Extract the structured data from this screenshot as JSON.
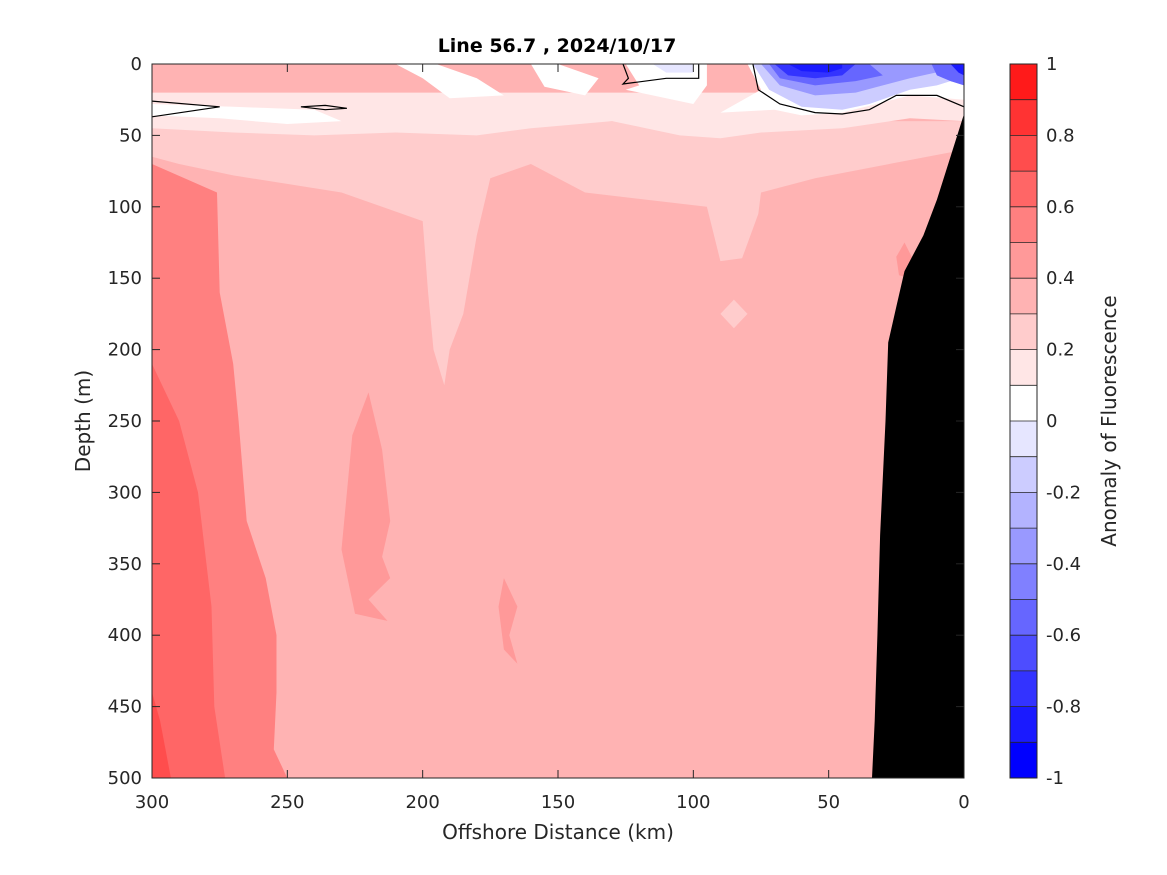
{
  "chart_data": {
    "type": "heatmap",
    "title": "Line 56.7 , 2024/10/17",
    "xlabel": "Offshore Distance (km)",
    "ylabel": "Depth (m)",
    "xlim": [
      300,
      0
    ],
    "ylim": [
      500,
      0
    ],
    "x_reversed": true,
    "y_reversed": true,
    "x_ticks": [
      "300",
      "250",
      "200",
      "150",
      "100",
      "50",
      "0"
    ],
    "y_ticks": [
      "0",
      "50",
      "100",
      "150",
      "200",
      "250",
      "300",
      "350",
      "400",
      "450",
      "500"
    ],
    "grid": false,
    "colorbar": {
      "label": "Anomaly of Fluorescence",
      "range": [
        -1,
        1
      ],
      "ticks": [
        "1",
        "0.8",
        "0.6",
        "0.4",
        "0.2",
        "0",
        "-0.2",
        "-0.4",
        "-0.6",
        "-0.8",
        "-1"
      ],
      "levels": [
        -1,
        -0.9,
        -0.8,
        -0.7,
        -0.6,
        -0.5,
        -0.4,
        -0.3,
        -0.2,
        -0.1,
        0,
        0.1,
        0.2,
        0.3,
        0.4,
        0.5,
        0.6,
        0.7,
        0.8,
        0.9,
        1
      ],
      "colors": [
        "#0000ff",
        "#1a1aff",
        "#3333ff",
        "#4d4dff",
        "#6666ff",
        "#8080ff",
        "#9999ff",
        "#b3b3ff",
        "#ccccff",
        "#e6e6ff",
        "#ffffff",
        "#ffffff",
        "#ffe6e6",
        "#ffcccc",
        "#ffb3b3",
        "#ff9999",
        "#ff8080",
        "#ff6666",
        "#ff4d4d",
        "#ff3333",
        "#ff1a1a",
        "#ff0000"
      ]
    },
    "bathymetry": {
      "color": "#000000",
      "boundary": [
        [
          0,
          35
        ],
        [
          5,
          65
        ],
        [
          10,
          95
        ],
        [
          15,
          120
        ],
        [
          22,
          145
        ],
        [
          25,
          170
        ],
        [
          28,
          195
        ],
        [
          29,
          250
        ],
        [
          31,
          330
        ],
        [
          32,
          400
        ],
        [
          33,
          460
        ],
        [
          34,
          500
        ]
      ]
    },
    "regions": [
      {
        "value": 0.35,
        "polygon": [
          [
            300,
            0
          ],
          [
            0,
            0
          ],
          [
            0,
            500
          ],
          [
            300,
            500
          ]
        ]
      },
      {
        "value": 0.55,
        "polygon": [
          [
            300,
            70
          ],
          [
            276,
            90
          ],
          [
            275,
            160
          ],
          [
            270,
            210
          ],
          [
            268,
            250
          ],
          [
            265,
            320
          ],
          [
            258,
            360
          ],
          [
            254,
            400
          ],
          [
            254,
            440
          ],
          [
            255,
            480
          ],
          [
            250,
            500
          ],
          [
            300,
            500
          ]
        ]
      },
      {
        "value": 0.65,
        "polygon": [
          [
            300,
            210
          ],
          [
            290,
            250
          ],
          [
            283,
            300
          ],
          [
            278,
            380
          ],
          [
            277,
            450
          ],
          [
            273,
            500
          ],
          [
            300,
            500
          ]
        ]
      },
      {
        "value": 0.75,
        "polygon": [
          [
            300,
            440
          ],
          [
            297,
            460
          ],
          [
            295,
            480
          ],
          [
            293,
            500
          ],
          [
            300,
            500
          ]
        ]
      },
      {
        "value": 0.45,
        "polygon": [
          [
            220,
            230
          ],
          [
            215,
            270
          ],
          [
            212,
            320
          ],
          [
            215,
            345
          ],
          [
            212,
            360
          ],
          [
            220,
            375
          ],
          [
            213,
            390
          ],
          [
            225,
            385
          ],
          [
            230,
            340
          ],
          [
            228,
            300
          ],
          [
            226,
            260
          ]
        ]
      },
      {
        "value": 0.45,
        "polygon": [
          [
            170,
            360
          ],
          [
            165,
            380
          ],
          [
            168,
            400
          ],
          [
            165,
            420
          ],
          [
            170,
            410
          ],
          [
            172,
            380
          ]
        ]
      },
      {
        "value": 0.45,
        "polygon": [
          [
            22,
            125
          ],
          [
            18,
            140
          ],
          [
            20,
            150
          ],
          [
            24,
            148
          ],
          [
            25,
            135
          ]
        ]
      },
      {
        "value": 0.25,
        "polygon": [
          [
            300,
            40
          ],
          [
            0,
            40
          ],
          [
            0,
            60
          ],
          [
            55,
            80
          ],
          [
            75,
            90
          ],
          [
            76,
            105
          ],
          [
            82,
            136
          ],
          [
            90,
            138
          ],
          [
            95,
            100
          ],
          [
            140,
            90
          ],
          [
            160,
            70
          ],
          [
            175,
            80
          ],
          [
            180,
            120
          ],
          [
            185,
            175
          ],
          [
            190,
            200
          ],
          [
            192,
            225
          ],
          [
            196,
            200
          ],
          [
            198,
            160
          ],
          [
            200,
            110
          ],
          [
            230,
            90
          ],
          [
            270,
            78
          ],
          [
            290,
            70
          ],
          [
            300,
            65
          ]
        ]
      },
      {
        "value": 0.25,
        "polygon": [
          [
            85,
            165
          ],
          [
            80,
            175
          ],
          [
            85,
            185
          ],
          [
            90,
            175
          ]
        ]
      },
      {
        "value": 0.15,
        "polygon": [
          [
            300,
            20
          ],
          [
            0,
            20
          ],
          [
            0,
            40
          ],
          [
            20,
            38
          ],
          [
            45,
            45
          ],
          [
            75,
            48
          ],
          [
            90,
            52
          ],
          [
            105,
            50
          ],
          [
            130,
            40
          ],
          [
            160,
            45
          ],
          [
            180,
            50
          ],
          [
            210,
            48
          ],
          [
            240,
            50
          ],
          [
            270,
            48
          ],
          [
            300,
            45
          ]
        ]
      },
      {
        "value": 0.05,
        "polygon": [
          [
            300,
            28
          ],
          [
            270,
            30
          ],
          [
            240,
            32
          ],
          [
            230,
            40
          ],
          [
            250,
            42
          ],
          [
            275,
            38
          ],
          [
            300,
            36
          ]
        ]
      },
      {
        "value": 0.05,
        "polygon": [
          [
            195,
            0
          ],
          [
            180,
            10
          ],
          [
            170,
            22
          ],
          [
            190,
            24
          ],
          [
            200,
            10
          ],
          [
            210,
            0
          ]
        ]
      },
      {
        "value": 0.05,
        "polygon": [
          [
            150,
            0
          ],
          [
            135,
            10
          ],
          [
            140,
            22
          ],
          [
            155,
            16
          ],
          [
            160,
            0
          ]
        ]
      },
      {
        "value": 0.05,
        "polygon": [
          [
            125,
            0
          ],
          [
            120,
            15
          ],
          [
            125,
            18
          ],
          [
            100,
            28
          ],
          [
            95,
            15
          ],
          [
            95,
            0
          ]
        ]
      },
      {
        "value": 0.05,
        "polygon": [
          [
            80,
            0
          ],
          [
            75,
            18
          ],
          [
            90,
            34
          ],
          [
            70,
            32
          ],
          [
            60,
            36
          ],
          [
            45,
            34
          ],
          [
            20,
            22
          ],
          [
            0,
            25
          ],
          [
            0,
            0
          ]
        ]
      },
      {
        "value": -0.05,
        "polygon": [
          [
            115,
            0
          ],
          [
            110,
            6
          ],
          [
            100,
            6
          ],
          [
            100,
            0
          ]
        ]
      },
      {
        "value": -0.15,
        "polygon": [
          [
            78,
            0
          ],
          [
            72,
            18
          ],
          [
            60,
            30
          ],
          [
            45,
            32
          ],
          [
            35,
            28
          ],
          [
            20,
            18
          ],
          [
            10,
            15
          ],
          [
            5,
            12
          ],
          [
            0,
            0
          ]
        ]
      },
      {
        "value": -0.35,
        "polygon": [
          [
            75,
            0
          ],
          [
            68,
            15
          ],
          [
            55,
            22
          ],
          [
            40,
            20
          ],
          [
            30,
            15
          ],
          [
            20,
            10
          ],
          [
            8,
            5
          ],
          [
            0,
            0
          ]
        ]
      },
      {
        "value": -0.55,
        "polygon": [
          [
            72,
            0
          ],
          [
            68,
            10
          ],
          [
            55,
            15
          ],
          [
            40,
            12
          ],
          [
            30,
            8
          ],
          [
            35,
            0
          ]
        ]
      },
      {
        "value": -0.75,
        "polygon": [
          [
            70,
            0
          ],
          [
            65,
            8
          ],
          [
            55,
            10
          ],
          [
            45,
            8
          ],
          [
            40,
            0
          ]
        ]
      },
      {
        "value": -0.85,
        "polygon": [
          [
            65,
            0
          ],
          [
            60,
            5
          ],
          [
            50,
            6
          ],
          [
            45,
            3
          ],
          [
            45,
            0
          ]
        ]
      },
      {
        "value": -0.55,
        "polygon": [
          [
            12,
            0
          ],
          [
            10,
            8
          ],
          [
            5,
            12
          ],
          [
            0,
            15
          ],
          [
            0,
            0
          ]
        ]
      },
      {
        "value": -0.85,
        "polygon": [
          [
            5,
            0
          ],
          [
            2,
            6
          ],
          [
            0,
            8
          ],
          [
            0,
            0
          ]
        ]
      }
    ],
    "zero_contours": [
      [
        [
          300,
          26
        ],
        [
          275,
          30
        ],
        [
          300,
          37
        ]
      ],
      [
        [
          245,
          30
        ],
        [
          236,
          29
        ],
        [
          228,
          31
        ],
        [
          236,
          32
        ],
        [
          245,
          30
        ]
      ],
      [
        [
          126,
          0
        ],
        [
          124,
          10
        ],
        [
          126,
          14
        ],
        [
          110,
          10
        ],
        [
          98,
          10
        ],
        [
          98,
          0
        ]
      ],
      [
        [
          78,
          0
        ],
        [
          76,
          18
        ],
        [
          68,
          28
        ],
        [
          55,
          34
        ],
        [
          45,
          35
        ],
        [
          35,
          32
        ],
        [
          25,
          22
        ],
        [
          10,
          22
        ],
        [
          0,
          30
        ]
      ]
    ]
  }
}
